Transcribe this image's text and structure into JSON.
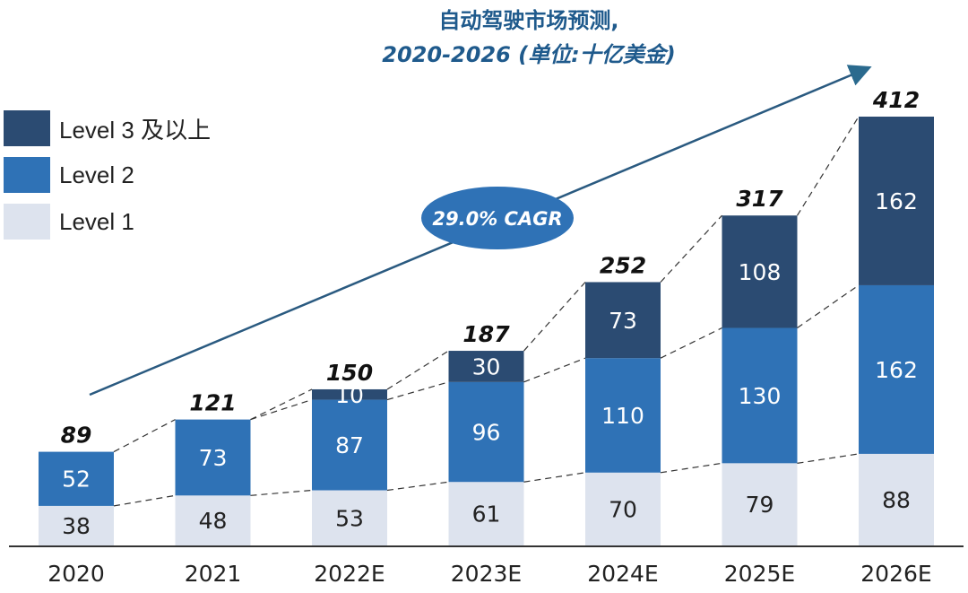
{
  "chart_data": {
    "type": "bar",
    "stacked": true,
    "title": "自动驾驶市场预测,",
    "subtitle": "2020-2026 (单位:十亿美金)",
    "categories": [
      "2020",
      "2021",
      "2022E",
      "2023E",
      "2024E",
      "2025E",
      "2026E"
    ],
    "series": [
      {
        "name": "Level 1",
        "values": [
          38,
          48,
          53,
          61,
          70,
          79,
          88
        ],
        "color": "#dde3ee"
      },
      {
        "name": "Level 2",
        "values": [
          52,
          73,
          87,
          96,
          110,
          130,
          162
        ],
        "color": "#2f72b6"
      },
      {
        "name": "Level 3 及以上",
        "values": [
          null,
          null,
          10,
          30,
          73,
          108,
          162
        ],
        "color": "#2b4b72"
      }
    ],
    "totals": [
      "89",
      "121",
      "150",
      "187",
      "252",
      "317",
      "412"
    ],
    "annotation": "29.0% CAGR",
    "legend_position": "top-left",
    "grid": false,
    "ylim": [
      0,
      412
    ]
  }
}
